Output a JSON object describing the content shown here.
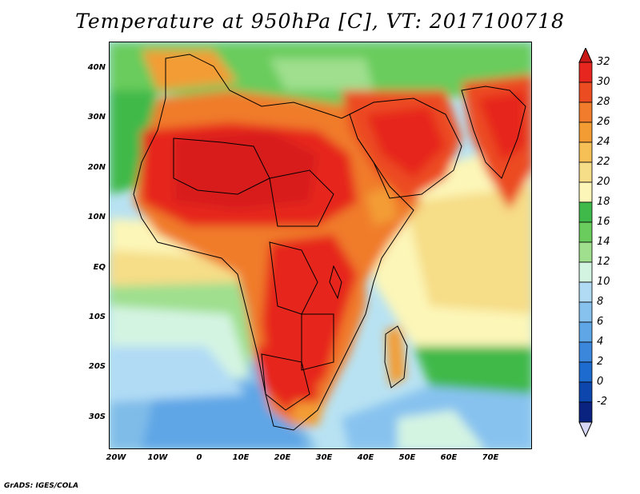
{
  "title": "Temperature at 950hPa [C], VT: 2017100718",
  "credit": "GrADS: IGES/COLA",
  "lat_labels": [
    "40N",
    "30N",
    "20N",
    "10N",
    "EQ",
    "10S",
    "20S",
    "30S"
  ],
  "lon_labels": [
    "20W",
    "10W",
    "0",
    "10E",
    "20E",
    "30E",
    "40E",
    "50E",
    "60E",
    "70E"
  ],
  "colorbar": {
    "labels": [
      "32",
      "30",
      "28",
      "26",
      "24",
      "22",
      "20",
      "18",
      "16",
      "14",
      "12",
      "10",
      "8",
      "6",
      "4",
      "2",
      "0",
      "-2"
    ],
    "colors_top_to_bottom": [
      "#e6261f",
      "#ec4c22",
      "#f07c2c",
      "#f39c34",
      "#f6c057",
      "#f6dd87",
      "#fcf6b8",
      "#3fb94a",
      "#69cc5c",
      "#9fdf8e",
      "#d4f4e2",
      "#b1dbf5",
      "#87c2ef",
      "#5ea6e6",
      "#3b87db",
      "#1e6bcf",
      "#0d47ad",
      "#0a2380"
    ],
    "over_color": "#c81818",
    "under_color": "#d7d7f5"
  },
  "field": {
    "variable": "Temperature",
    "level": "950hPa",
    "units": "C",
    "valid_time": "2017100718"
  }
}
